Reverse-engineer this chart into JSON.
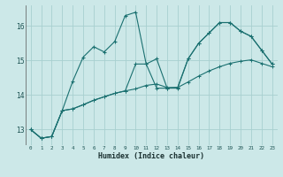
{
  "xlabel": "Humidex (Indice chaleur)",
  "ylabel": "",
  "bg_color": "#cce8e8",
  "grid_color": "#a8d0d0",
  "line_color": "#1a7070",
  "xlim": [
    -0.5,
    23.5
  ],
  "ylim": [
    12.55,
    16.6
  ],
  "yticks": [
    13,
    14,
    15,
    16
  ],
  "xticks": [
    0,
    1,
    2,
    3,
    4,
    5,
    6,
    7,
    8,
    9,
    10,
    11,
    12,
    13,
    14,
    15,
    16,
    17,
    18,
    19,
    20,
    21,
    22,
    23
  ],
  "series1_x": [
    0,
    1,
    2,
    3,
    4,
    5,
    6,
    7,
    8,
    9,
    10,
    11,
    12,
    13,
    14,
    15,
    16,
    17,
    18,
    19,
    20,
    21,
    22,
    23
  ],
  "series1_y": [
    13.0,
    12.75,
    12.8,
    13.55,
    14.4,
    15.1,
    15.4,
    15.25,
    15.55,
    16.3,
    16.4,
    14.9,
    15.05,
    14.2,
    14.2,
    15.05,
    15.5,
    15.8,
    16.1,
    16.1,
    15.85,
    15.7,
    15.3,
    14.9
  ],
  "series2_x": [
    0,
    1,
    2,
    3,
    4,
    5,
    6,
    7,
    8,
    9,
    10,
    11,
    12,
    13,
    14,
    15,
    16,
    17,
    18,
    19,
    20,
    21,
    22,
    23
  ],
  "series2_y": [
    13.0,
    12.75,
    12.8,
    13.55,
    13.6,
    13.72,
    13.85,
    13.95,
    14.05,
    14.12,
    14.18,
    14.28,
    14.32,
    14.22,
    14.22,
    14.38,
    14.55,
    14.7,
    14.82,
    14.92,
    14.98,
    15.02,
    14.92,
    14.82
  ],
  "series3_x": [
    0,
    1,
    2,
    3,
    4,
    5,
    6,
    7,
    8,
    9,
    10,
    11,
    12,
    13,
    14,
    15,
    16,
    17,
    18,
    19,
    20,
    21,
    22,
    23
  ],
  "series3_y": [
    13.0,
    12.75,
    12.8,
    13.55,
    13.6,
    13.72,
    13.85,
    13.95,
    14.05,
    14.12,
    14.9,
    14.9,
    14.2,
    14.2,
    14.22,
    15.05,
    15.5,
    15.8,
    16.1,
    16.1,
    15.85,
    15.7,
    15.3,
    14.9
  ]
}
